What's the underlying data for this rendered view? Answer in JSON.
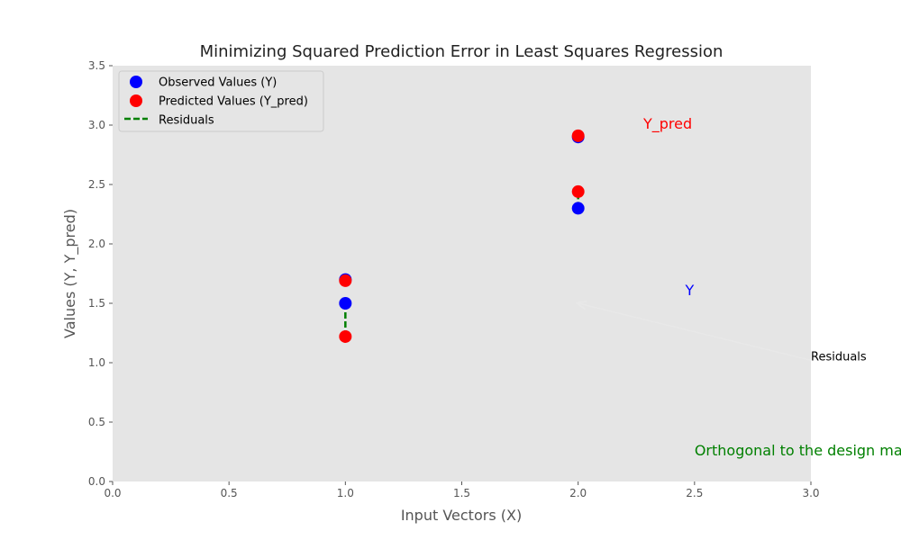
{
  "chart_data": {
    "type": "scatter",
    "title": "Minimizing Squared Prediction Error in Least Squares Regression",
    "xlabel": "Input Vectors (X)",
    "ylabel": "Values (Y, Y_pred)",
    "xlim": [
      0.0,
      3.0
    ],
    "ylim": [
      0.0,
      3.5
    ],
    "x_ticks": [
      "0.0",
      "0.5",
      "1.0",
      "1.5",
      "2.0",
      "2.5",
      "3.0"
    ],
    "y_ticks": [
      "0.0",
      "0.5",
      "1.0",
      "1.5",
      "2.0",
      "2.5",
      "3.0",
      "3.5"
    ],
    "grid": false,
    "legend_position": "top-left",
    "series": [
      {
        "name": "Observed Values (Y)",
        "color": "#0000ff",
        "marker": "circle",
        "points": [
          {
            "x": 1.0,
            "y": 1.5
          },
          {
            "x": 1.0,
            "y": 1.7
          },
          {
            "x": 2.0,
            "y": 2.3
          },
          {
            "x": 2.0,
            "y": 2.9
          }
        ]
      },
      {
        "name": "Predicted Values (Y_pred)",
        "color": "#ff0000",
        "marker": "circle",
        "points": [
          {
            "x": 1.0,
            "y": 1.22
          },
          {
            "x": 1.0,
            "y": 1.69
          },
          {
            "x": 2.0,
            "y": 2.44
          },
          {
            "x": 2.0,
            "y": 2.91
          }
        ]
      },
      {
        "name": "Residuals",
        "color": "#008000",
        "style": "dashed",
        "segments": [
          {
            "x": 1.0,
            "y1": 1.5,
            "y2": 1.22
          },
          {
            "x": 1.0,
            "y1": 1.7,
            "y2": 1.69
          },
          {
            "x": 2.0,
            "y1": 2.3,
            "y2": 2.44
          },
          {
            "x": 2.0,
            "y1": 2.9,
            "y2": 2.91
          }
        ]
      }
    ],
    "annotations": [
      {
        "text": "Y_pred",
        "x": 2.28,
        "y": 2.97,
        "color": "#ff0000"
      },
      {
        "text": "Y",
        "x": 2.46,
        "y": 1.57,
        "color": "#0000ff"
      },
      {
        "text": "Residuals",
        "x": 3.0,
        "y": 1.02,
        "color": "#000000",
        "arrow_to": {
          "x": 2.0,
          "y": 1.5
        }
      },
      {
        "text": "Orthogonal to the design matrix",
        "x": 2.5,
        "y": 0.22,
        "color": "#008000"
      }
    ]
  }
}
